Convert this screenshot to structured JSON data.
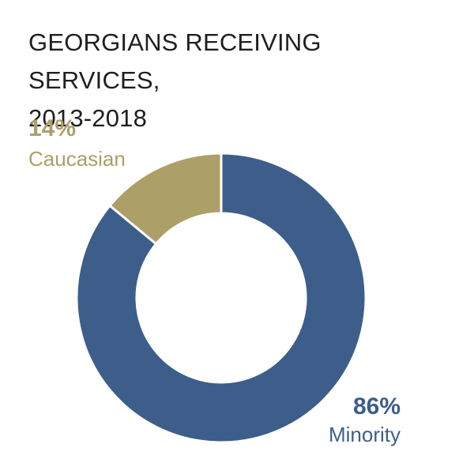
{
  "chart_data": {
    "type": "pie",
    "title_lines": [
      "GEORGIANS RECEIVING SERVICES,",
      "2013-2018"
    ],
    "slices": [
      {
        "label": "Caucasian",
        "value": 14,
        "display": "14%",
        "color": "#ad9f68"
      },
      {
        "label": "Minority",
        "value": 86,
        "display": "86%",
        "color": "#3d5e8a"
      }
    ]
  }
}
